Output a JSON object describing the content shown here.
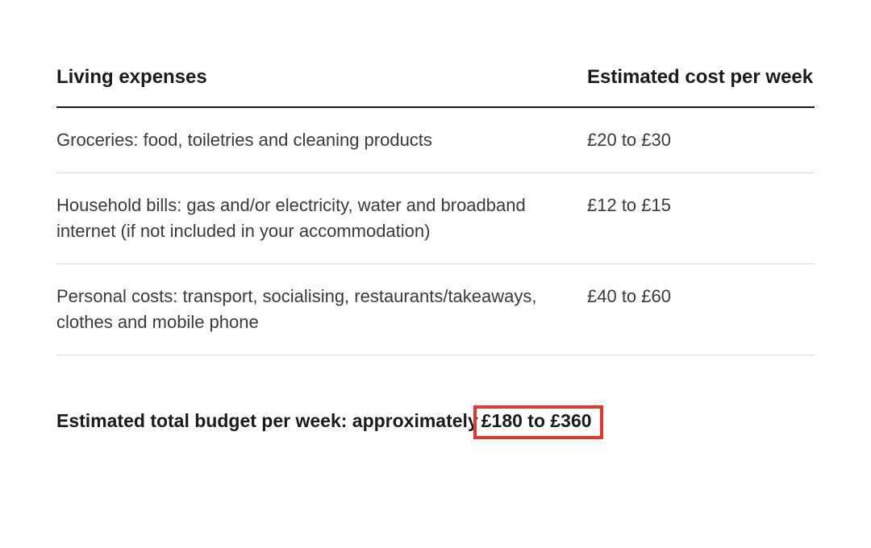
{
  "table": {
    "columns": [
      "Living expenses",
      "Estimated cost per week"
    ],
    "rows": [
      {
        "expense": "Groceries: food, toiletries and cleaning products",
        "cost": "£20 to £30"
      },
      {
        "expense": "Household bills: gas and/or electricity, water and broadband internet (if not included in your accommodation)",
        "cost": "£12 to £15"
      },
      {
        "expense": "Personal costs: transport, socialising, restaurants/takeaways, clothes and mobile phone",
        "cost": "£40 to £60"
      }
    ],
    "column_widths": [
      "70%",
      "30%"
    ],
    "header_border_color": "#1a1a1a",
    "row_border_color": "#d8d8d8",
    "header_fontsize": 24,
    "cell_fontsize": 22,
    "header_color": "#1a1a1a",
    "cell_color": "#3a3a3a",
    "background_color": "#ffffff"
  },
  "total": {
    "prefix": "Estimated total budget per week: approximately",
    "value": " £180 to £360",
    "highlight_border_color": "#e8342f",
    "highlight_border_width": 4,
    "fontsize": 23,
    "font_weight": 700
  }
}
